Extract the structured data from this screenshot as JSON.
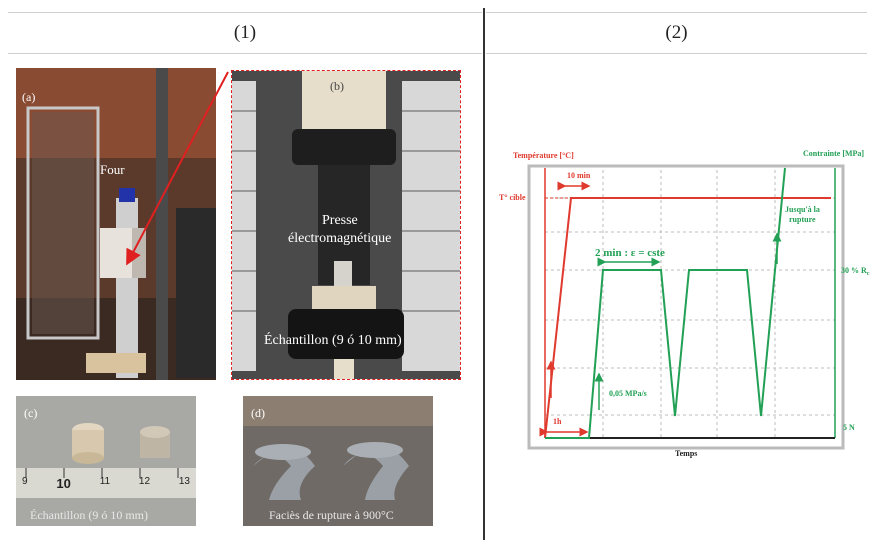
{
  "headers": {
    "left": "(1)",
    "right": "(2)"
  },
  "photos": {
    "a": {
      "label": "(a)",
      "four": "Four"
    },
    "b": {
      "label": "(b)",
      "presse_line1": "Presse",
      "presse_line2": "électromagnétique",
      "echantillon": "Échantillon (9 ó 10 mm)"
    },
    "c": {
      "label": "(c)",
      "caption": "Échantillon (9 ó 10 mm)",
      "ruler_numbers": [
        "9",
        "10",
        "11",
        "12",
        "13"
      ]
    },
    "d": {
      "label": "(d)",
      "caption": "Faciès de rupture à 900°C"
    }
  },
  "diagram": {
    "y_left_label": "Température [°C]",
    "y_right_label": "Contrainte [MPa]",
    "t_cible": "T° cible",
    "ten_min": "10 min",
    "two_min": "2 min : ε = cste",
    "jusqua_line1": "Jusqu'à la",
    "jusqua_line2": "rupture",
    "thirty_pct": "30 % R",
    "thirty_pct_sub": "c",
    "one_h": "1h",
    "rate": "0,05 MPa/s",
    "five_n": "5 N",
    "x_label": "Temps",
    "colors": {
      "temperature": "#e03a2e",
      "stress": "#22a055",
      "axis": "#222222"
    }
  }
}
